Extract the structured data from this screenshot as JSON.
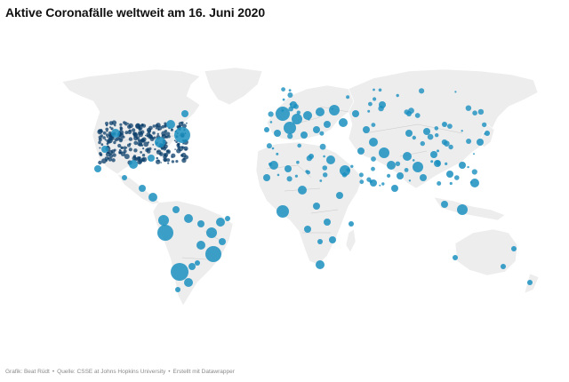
{
  "title": "Aktive Coronafälle weltweit am 16. Juni 2020",
  "footer": {
    "graphic": "Grafik: Beat Rüdt",
    "source": "Quelle: CSSE at Johns Hopkins University",
    "tool": "Erstellt mit Datawrapper",
    "separator": "•"
  },
  "colors": {
    "land": "#ededed",
    "bubble": "#1a8fbf",
    "bubble_dense": "#0b3f6b",
    "background": "#ffffff"
  }
}
